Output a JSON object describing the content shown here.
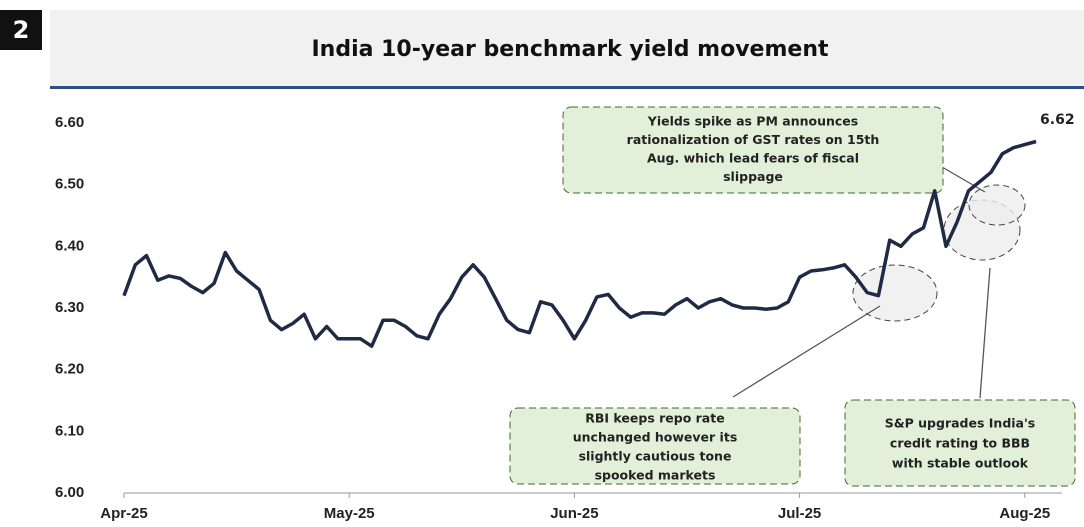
{
  "chart_data": {
    "type": "line",
    "badge": "2",
    "title": "India 10-year benchmark yield movement",
    "categories": [
      "Apr-25",
      null,
      null,
      null,
      null,
      null,
      null,
      null,
      null,
      null,
      null,
      null,
      null,
      null,
      null,
      null,
      null,
      null,
      null,
      null,
      "May-25",
      null,
      null,
      null,
      null,
      null,
      null,
      null,
      null,
      null,
      null,
      null,
      null,
      null,
      null,
      null,
      null,
      null,
      null,
      null,
      "Jun-25",
      null,
      null,
      null,
      null,
      null,
      null,
      null,
      null,
      null,
      null,
      null,
      null,
      null,
      null,
      null,
      null,
      null,
      null,
      null,
      "Jul-25",
      null,
      null,
      null,
      null,
      null,
      null,
      null,
      null,
      null,
      null,
      null,
      null,
      null,
      null,
      null,
      null,
      null,
      null,
      null,
      "Aug-25",
      null
    ],
    "series": [
      {
        "name": "India 10-year benchmark yield",
        "color": "#1f2a44",
        "values": [
          6.32,
          6.37,
          6.385,
          6.345,
          6.352,
          6.348,
          6.335,
          6.325,
          6.34,
          6.39,
          6.36,
          6.345,
          6.33,
          6.28,
          6.265,
          6.275,
          6.29,
          6.25,
          6.27,
          6.25,
          6.25,
          6.25,
          6.238,
          6.28,
          6.28,
          6.27,
          6.255,
          6.25,
          6.29,
          6.315,
          6.35,
          6.37,
          6.35,
          6.315,
          6.28,
          6.265,
          6.26,
          6.31,
          6.305,
          6.28,
          6.25,
          6.28,
          6.318,
          6.322,
          6.3,
          6.285,
          6.292,
          6.292,
          6.29,
          6.305,
          6.315,
          6.3,
          6.31,
          6.315,
          6.305,
          6.3,
          6.3,
          6.298,
          6.3,
          6.31,
          6.35,
          6.36,
          6.362,
          6.365,
          6.37,
          6.35,
          6.325,
          6.32,
          6.41,
          6.4,
          6.42,
          6.43,
          6.49,
          6.4,
          6.44,
          6.49,
          6.505,
          6.52,
          6.55,
          6.56,
          6.565,
          6.57
        ]
      }
    ],
    "ylim": [
      6.0,
      6.6
    ],
    "yticks": [
      {
        "value": 6.0,
        "label": "6.00"
      },
      {
        "value": 6.1,
        "label": "6.10"
      },
      {
        "value": 6.2,
        "label": "6.20"
      },
      {
        "value": 6.3,
        "label": "6.30"
      },
      {
        "value": 6.4,
        "label": "6.40"
      },
      {
        "value": 6.5,
        "label": "6.50"
      },
      {
        "value": 6.6,
        "label": "6.60"
      }
    ],
    "end_label": "6.62",
    "annotations": [
      {
        "lines": [
          "Yields spike as PM announces",
          "rationalization  of GST rates on 15th",
          "Aug. which lead fears of fiscal",
          "slippage"
        ]
      },
      {
        "lines": [
          "RBI keeps repo rate",
          "unchanged  however its",
          "slightly cautious tone",
          "spooked markets"
        ]
      },
      {
        "lines": [
          "S&P upgrades India's",
          "credit rating to BBB",
          "with stable outlook"
        ]
      }
    ]
  }
}
